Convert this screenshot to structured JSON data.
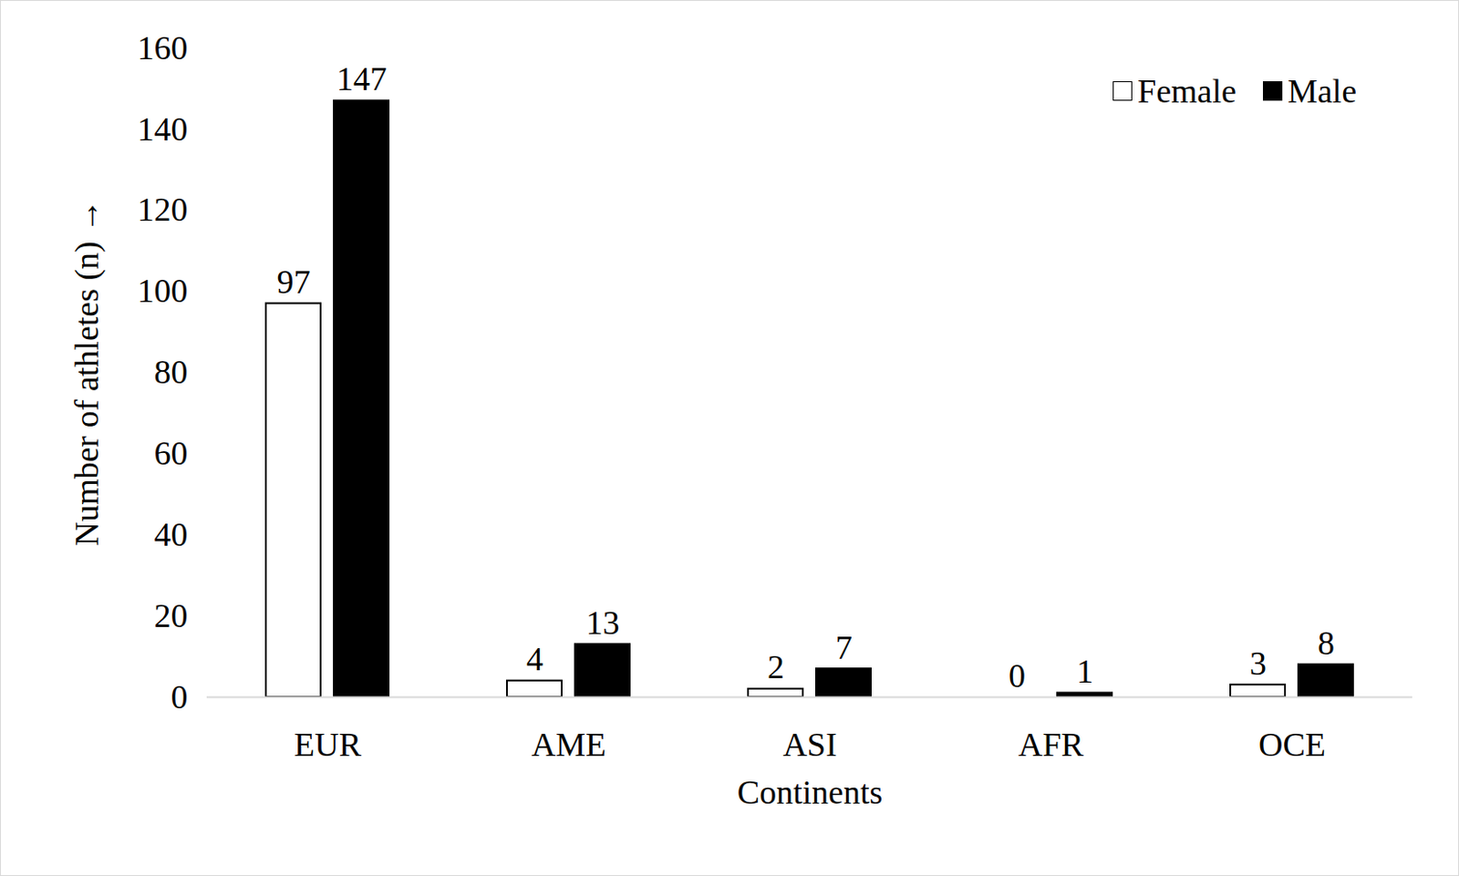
{
  "chart_data": {
    "type": "bar",
    "categories": [
      "EUR",
      "AME",
      "ASI",
      "AFR",
      "OCE"
    ],
    "series": [
      {
        "name": "Female",
        "color": "#ffffff",
        "values": [
          97,
          4,
          2,
          0,
          3
        ]
      },
      {
        "name": "Male",
        "color": "#000000",
        "values": [
          147,
          13,
          7,
          1,
          8
        ]
      }
    ],
    "x_label": "Continents",
    "y_label": "Number of athletes (n)",
    "ylim": [
      0,
      160
    ],
    "yticks": [
      0,
      20,
      40,
      60,
      80,
      100,
      120,
      140,
      160
    ],
    "grid": false,
    "legend": "top-right",
    "data_labels": true
  }
}
